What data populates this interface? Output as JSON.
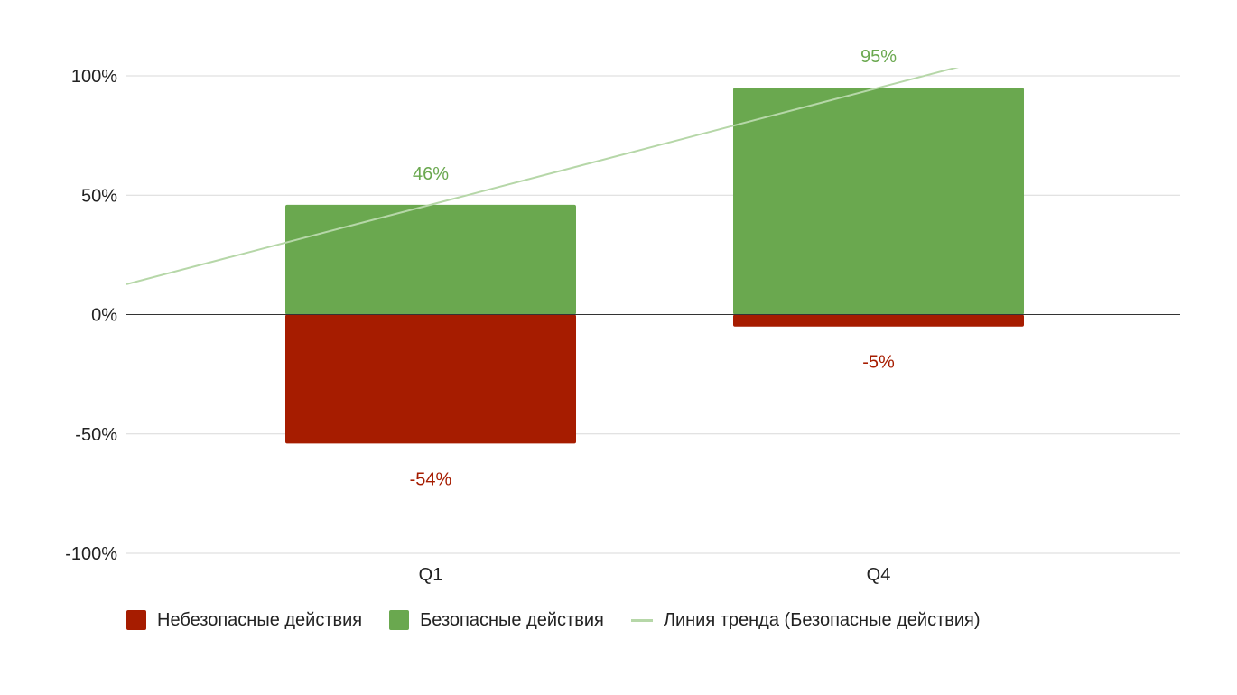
{
  "colors": {
    "unsafe": "#a61c00",
    "safe": "#6aa84f",
    "trend": "#b6d7a8",
    "grid": "#d9d9d9",
    "zero_line": "#333333",
    "text": "#222222"
  },
  "chart_data": {
    "type": "bar",
    "stacked": true,
    "categories": [
      "Q1",
      "Q4"
    ],
    "series": [
      {
        "name": "Небезопасные действия",
        "values": [
          -54,
          -5
        ],
        "labels": [
          "-54%",
          "-5%"
        ]
      },
      {
        "name": "Безопасные действия",
        "values": [
          46,
          95
        ],
        "labels": [
          "46%",
          "95%"
        ]
      }
    ],
    "trendline": {
      "name": "Линия тренда (Безопасные действия)",
      "of_series": "Безопасные действия"
    },
    "ylim": [
      -100,
      100
    ],
    "yticks": [
      100,
      50,
      0,
      -50,
      -100
    ],
    "ytick_labels": [
      "100%",
      "50%",
      "0%",
      "-50%",
      "-100%"
    ],
    "grid": true,
    "legend_position": "bottom-left"
  }
}
